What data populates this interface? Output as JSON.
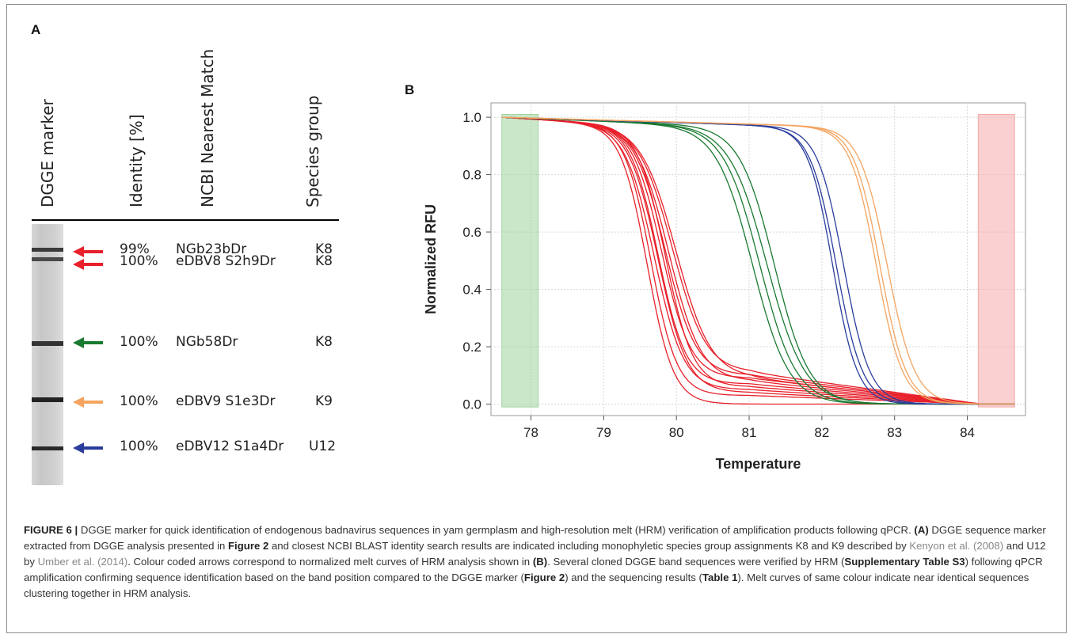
{
  "panel_a": {
    "letter": "A",
    "headers": {
      "marker": "DGGE marker",
      "identity": "Identity [%]",
      "match": "NCBI Nearest Match",
      "species": "Species group"
    },
    "rows": [
      {
        "identity": "99%",
        "match": "NGb23bDr",
        "species": "K8",
        "arrow_color": "#e8202a"
      },
      {
        "identity": "100%",
        "match": "eDBV8 S2h9Dr",
        "species": "K8",
        "arrow_color": "#e8202a"
      },
      {
        "identity": "100%",
        "match": "NGb58Dr",
        "species": "K8",
        "arrow_color": "#1a7a30"
      },
      {
        "identity": "100%",
        "match": "eDBV9 S1e3Dr",
        "species": "K9",
        "arrow_color": "#f4a460"
      },
      {
        "identity": "100%",
        "match": "eDBV12 S1a4Dr",
        "species": "U12",
        "arrow_color": "#2a3d9c"
      }
    ]
  },
  "panel_b": {
    "letter": "B"
  },
  "chart_data": {
    "type": "line",
    "xlabel": "Temperature",
    "ylabel": "Normalized RFU",
    "xlim": [
      77.45,
      84.8
    ],
    "ylim": [
      -0.04,
      1.05
    ],
    "xticks": [
      "78",
      "79",
      "80",
      "81",
      "82",
      "83",
      "84"
    ],
    "yticks": [
      "0.0",
      "0.2",
      "0.4",
      "0.6",
      "0.8",
      "1.0"
    ],
    "grid": true,
    "shaded_regions": [
      {
        "x0": 77.6,
        "x1": 78.1,
        "y0": -0.01,
        "y1": 1.01,
        "color": "#9fd49f"
      },
      {
        "x0": 84.15,
        "x1": 84.65,
        "y0": -0.01,
        "y1": 1.01,
        "color": "#f6a9a9"
      }
    ],
    "series_groups": [
      {
        "color": "#e8202a",
        "curves": [
          {
            "tm": 79.85,
            "w": 0.21,
            "tail": 0.1
          },
          {
            "tm": 79.8,
            "w": 0.2,
            "tail": 0.09
          },
          {
            "tm": 79.9,
            "w": 0.22,
            "tail": 0.08
          },
          {
            "tm": 79.75,
            "w": 0.19,
            "tail": 0.07
          },
          {
            "tm": 79.95,
            "w": 0.23,
            "tail": 0.11
          },
          {
            "tm": 79.7,
            "w": 0.2,
            "tail": 0.05
          },
          {
            "tm": 79.65,
            "w": 0.18,
            "tail": 0.03
          },
          {
            "tm": 79.85,
            "w": 0.19,
            "tail": 0.06
          },
          {
            "tm": 80.0,
            "w": 0.24,
            "tail": 0.09
          },
          {
            "tm": 79.6,
            "w": 0.18,
            "tail": 0.0
          },
          {
            "tm": 79.75,
            "w": 0.2,
            "tail": 0.04
          }
        ]
      },
      {
        "color": "#1a7a30",
        "curves": [
          {
            "tm": 81.15,
            "w": 0.25,
            "tail": 0.0
          },
          {
            "tm": 81.25,
            "w": 0.26,
            "tail": 0.0
          },
          {
            "tm": 81.05,
            "w": 0.25,
            "tail": 0.0
          },
          {
            "tm": 81.35,
            "w": 0.24,
            "tail": 0.0
          }
        ]
      },
      {
        "color": "#2a3d9c",
        "curves": [
          {
            "tm": 82.2,
            "w": 0.18,
            "tail": 0.0
          },
          {
            "tm": 82.3,
            "w": 0.18,
            "tail": 0.0
          },
          {
            "tm": 82.15,
            "w": 0.17,
            "tail": 0.0
          }
        ]
      },
      {
        "color": "#f4a460",
        "curves": [
          {
            "tm": 82.8,
            "w": 0.18,
            "tail": 0.0
          },
          {
            "tm": 82.9,
            "w": 0.19,
            "tail": 0.0
          },
          {
            "tm": 82.75,
            "w": 0.18,
            "tail": 0.0
          }
        ]
      }
    ]
  },
  "caption": {
    "fig_label": "FIGURE 6 |",
    "t1": " DGGE marker for quick identification of endogenous badnavirus sequences in yam germplasm and high-resolution melt (HRM) verification of amplification products following qPCR. ",
    "b1": "(A)",
    "t2": " DGGE sequence marker extracted from DGGE analysis presented in ",
    "b2": "Figure 2",
    "t3": " and closest NCBI BLAST identity search results are indicated including monophyletic species group assignments K8 and K9 described by ",
    "r1": "Kenyon et al. (2008)",
    "t4": " and U12 by ",
    "r2": "Umber et al. (2014)",
    "t5": ". Colour coded arrows correspond to normalized melt curves of HRM analysis shown in ",
    "b3": "(B)",
    "t6": ". Several cloned DGGE band sequences were verified by HRM (",
    "b4": "Supplementary Table S3",
    "t7": ") following qPCR amplification confirming sequence identification based on the band position compared to the DGGE marker (",
    "b5": "Figure 2",
    "t8": ") and the sequencing results (",
    "b6": "Table 1",
    "t9": "). Melt curves of same colour indicate near identical sequences clustering together in HRM analysis."
  }
}
